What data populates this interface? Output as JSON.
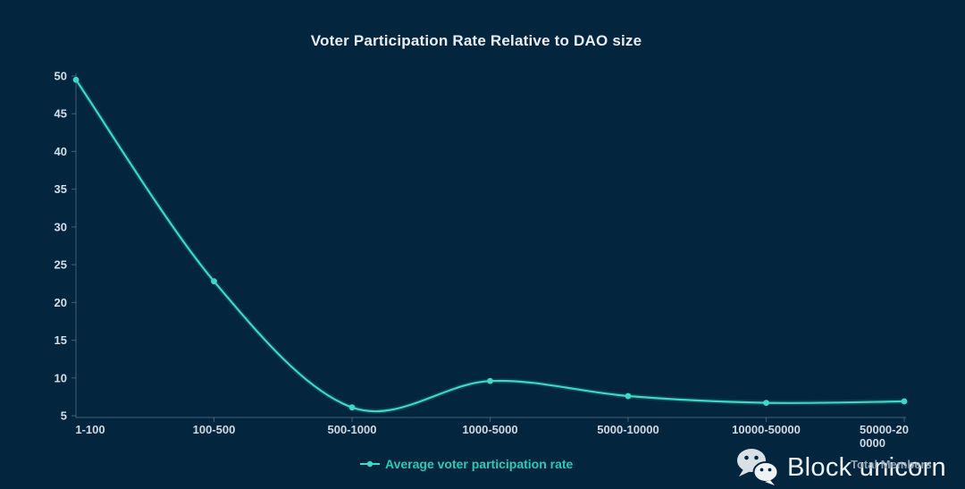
{
  "chart_data": {
    "type": "line",
    "title": "Voter Participation Rate Relative to DAO size",
    "categories": [
      "1-100",
      "100-500",
      "500-1000",
      "1000-5000",
      "5000-10000",
      "10000-50000",
      "50000-20\n0000"
    ],
    "series": [
      {
        "name": "Average voter participation rate",
        "values": [
          49.5,
          22.8,
          6.1,
          9.6,
          7.6,
          6.7,
          6.9
        ],
        "color": "#3dd8c6"
      }
    ],
    "xlabel": "Total Members",
    "ylabel": "",
    "ylim": [
      5,
      50
    ],
    "yticks": [
      5,
      10,
      15,
      20,
      25,
      30,
      35,
      40,
      45,
      50
    ],
    "grid": false,
    "smooth": true,
    "legend_position": "bottom"
  },
  "colors": {
    "background": "#03253e",
    "line": "#3dd8c6",
    "legend_text": "#25cdb9",
    "title_text": "#e8eef4",
    "axis_line": "#8ca5b9",
    "axis_label": "#d7dfe6",
    "xaxis_name_text": "#9aaab7",
    "watermark_text": "#edf2f5"
  },
  "watermark": {
    "icon": "wechat-icon",
    "text": "Block unicorn"
  }
}
